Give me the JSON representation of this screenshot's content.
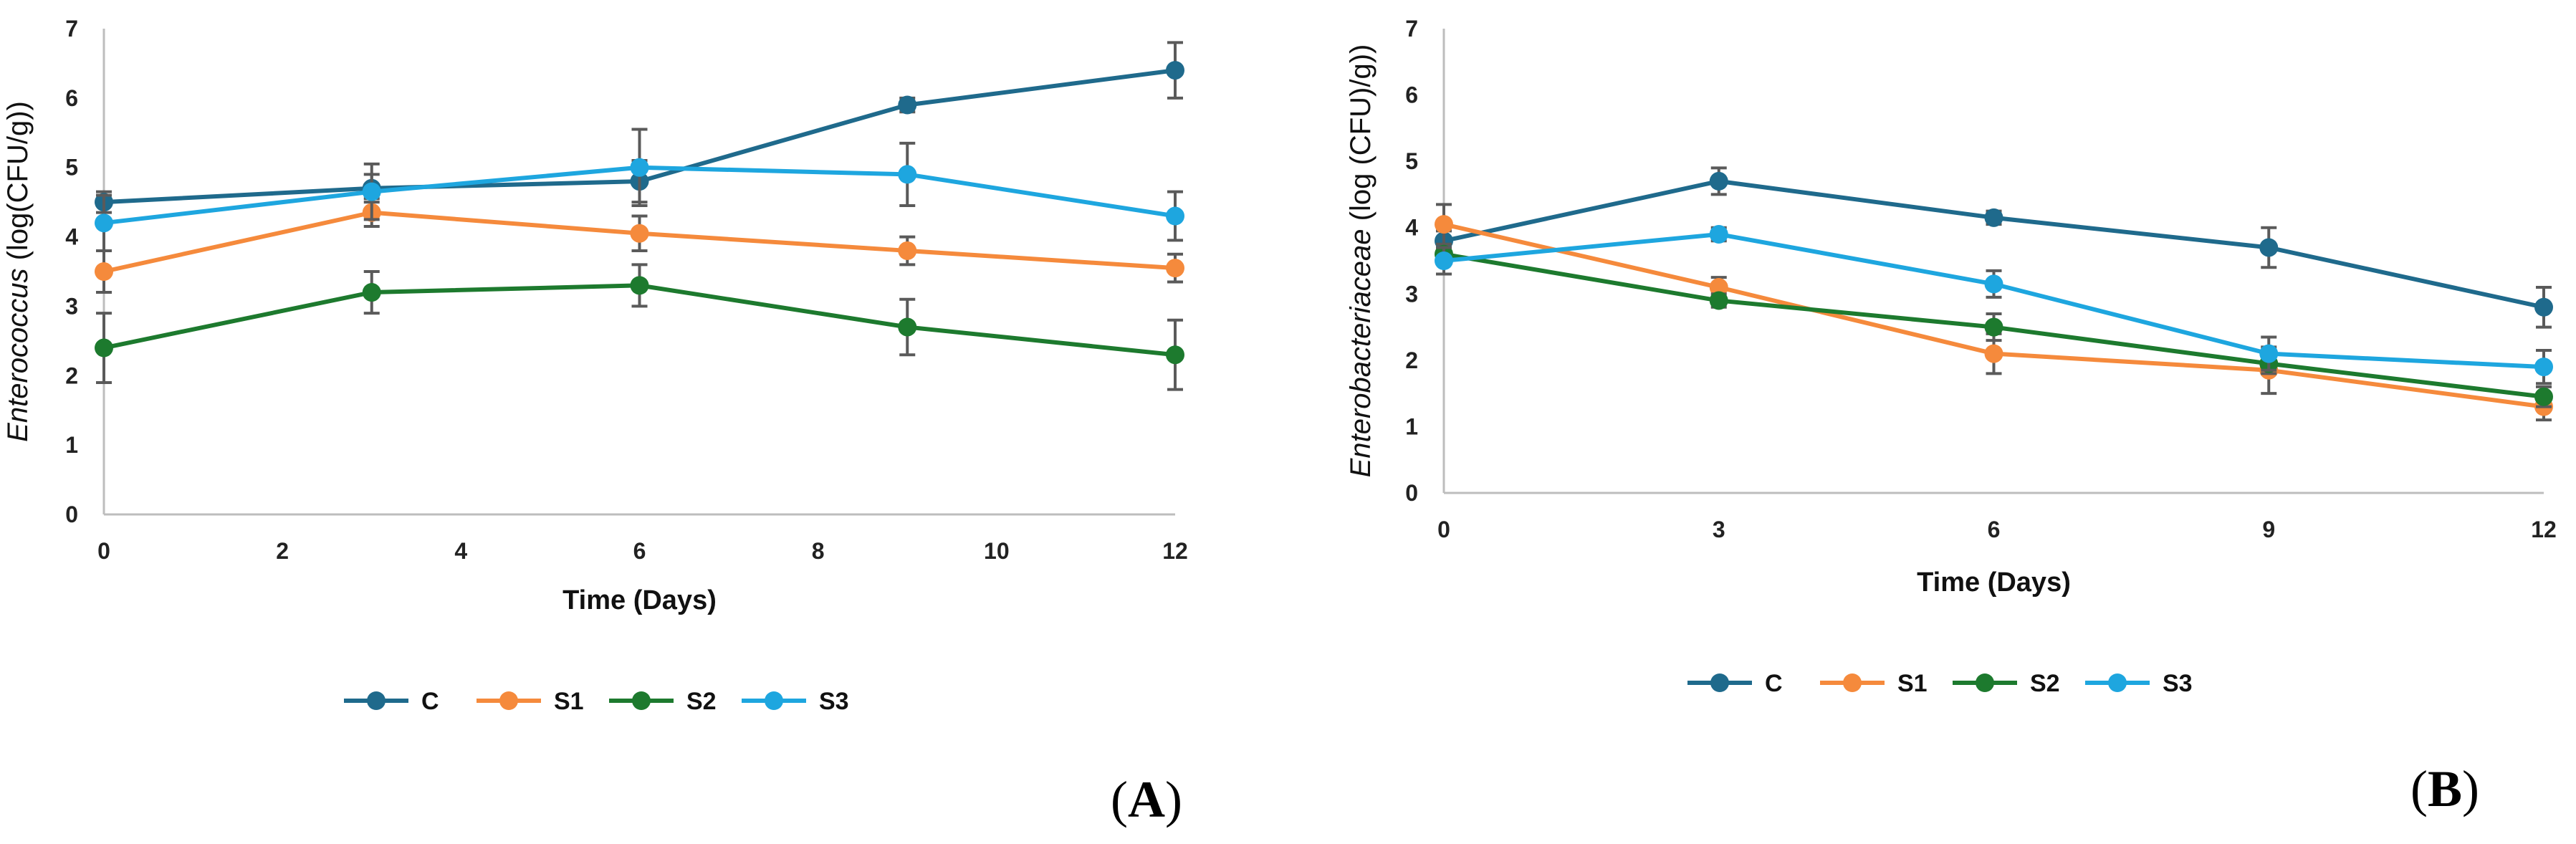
{
  "chart_data": [
    {
      "type": "line",
      "panel_label": "A",
      "title": "",
      "xlabel": "Time (Days)",
      "ylabel_italic": "Enterococcus",
      "ylabel_unit": " (log(CFU/g))",
      "xlim": [
        0,
        12
      ],
      "ylim": [
        0,
        7
      ],
      "xticks": [
        0,
        2,
        4,
        6,
        8,
        10,
        12
      ],
      "yticks": [
        0,
        1,
        2,
        3,
        4,
        5,
        6,
        7
      ],
      "x": [
        0,
        3,
        6,
        9,
        12
      ],
      "legend_position": "bottom",
      "series": [
        {
          "name": "C",
          "color": "#1f6a8c",
          "values": [
            4.5,
            4.7,
            4.8,
            5.9,
            6.4
          ],
          "errors": [
            0.15,
            0.2,
            0.3,
            0.1,
            0.4
          ]
        },
        {
          "name": "S1",
          "color": "#f58a3c",
          "values": [
            3.5,
            4.35,
            4.05,
            3.8,
            3.55
          ],
          "errors": [
            0.3,
            0.2,
            0.25,
            0.2,
            0.2
          ]
        },
        {
          "name": "S2",
          "color": "#1d7a2e",
          "values": [
            2.4,
            3.2,
            3.3,
            2.7,
            2.3
          ],
          "errors": [
            0.5,
            0.3,
            0.3,
            0.4,
            0.5
          ]
        },
        {
          "name": "S3",
          "color": "#1ea6df",
          "values": [
            4.2,
            4.65,
            5.0,
            4.9,
            4.3
          ],
          "errors": [
            0.4,
            0.4,
            0.55,
            0.45,
            0.35
          ]
        }
      ]
    },
    {
      "type": "line",
      "panel_label": "B",
      "title": "",
      "xlabel": "Time (Days)",
      "ylabel_italic": "Enterobacteriaceae",
      "ylabel_unit": " (log (CFU)/g))",
      "xlim": [
        0,
        12
      ],
      "ylim": [
        0,
        7
      ],
      "xticks": [
        0,
        3,
        6,
        9,
        12
      ],
      "yticks": [
        0,
        1,
        2,
        3,
        4,
        5,
        6,
        7
      ],
      "x": [
        0,
        3,
        6,
        9,
        12
      ],
      "legend_position": "bottom",
      "series": [
        {
          "name": "C",
          "color": "#1f6a8c",
          "values": [
            3.8,
            4.7,
            4.15,
            3.7,
            2.8
          ],
          "errors": [
            0.15,
            0.2,
            0.1,
            0.3,
            0.3
          ]
        },
        {
          "name": "S1",
          "color": "#f58a3c",
          "values": [
            4.05,
            3.1,
            2.1,
            1.85,
            1.3
          ],
          "errors": [
            0.3,
            0.15,
            0.3,
            0.35,
            0.2
          ]
        },
        {
          "name": "S2",
          "color": "#1d7a2e",
          "values": [
            3.6,
            2.9,
            2.5,
            1.95,
            1.45
          ],
          "errors": [
            0.15,
            0.1,
            0.2,
            0.15,
            0.15
          ]
        },
        {
          "name": "S3",
          "color": "#1ea6df",
          "values": [
            3.5,
            3.9,
            3.15,
            2.1,
            1.9
          ],
          "errors": [
            0.2,
            0.1,
            0.2,
            0.25,
            0.25
          ]
        }
      ]
    }
  ]
}
